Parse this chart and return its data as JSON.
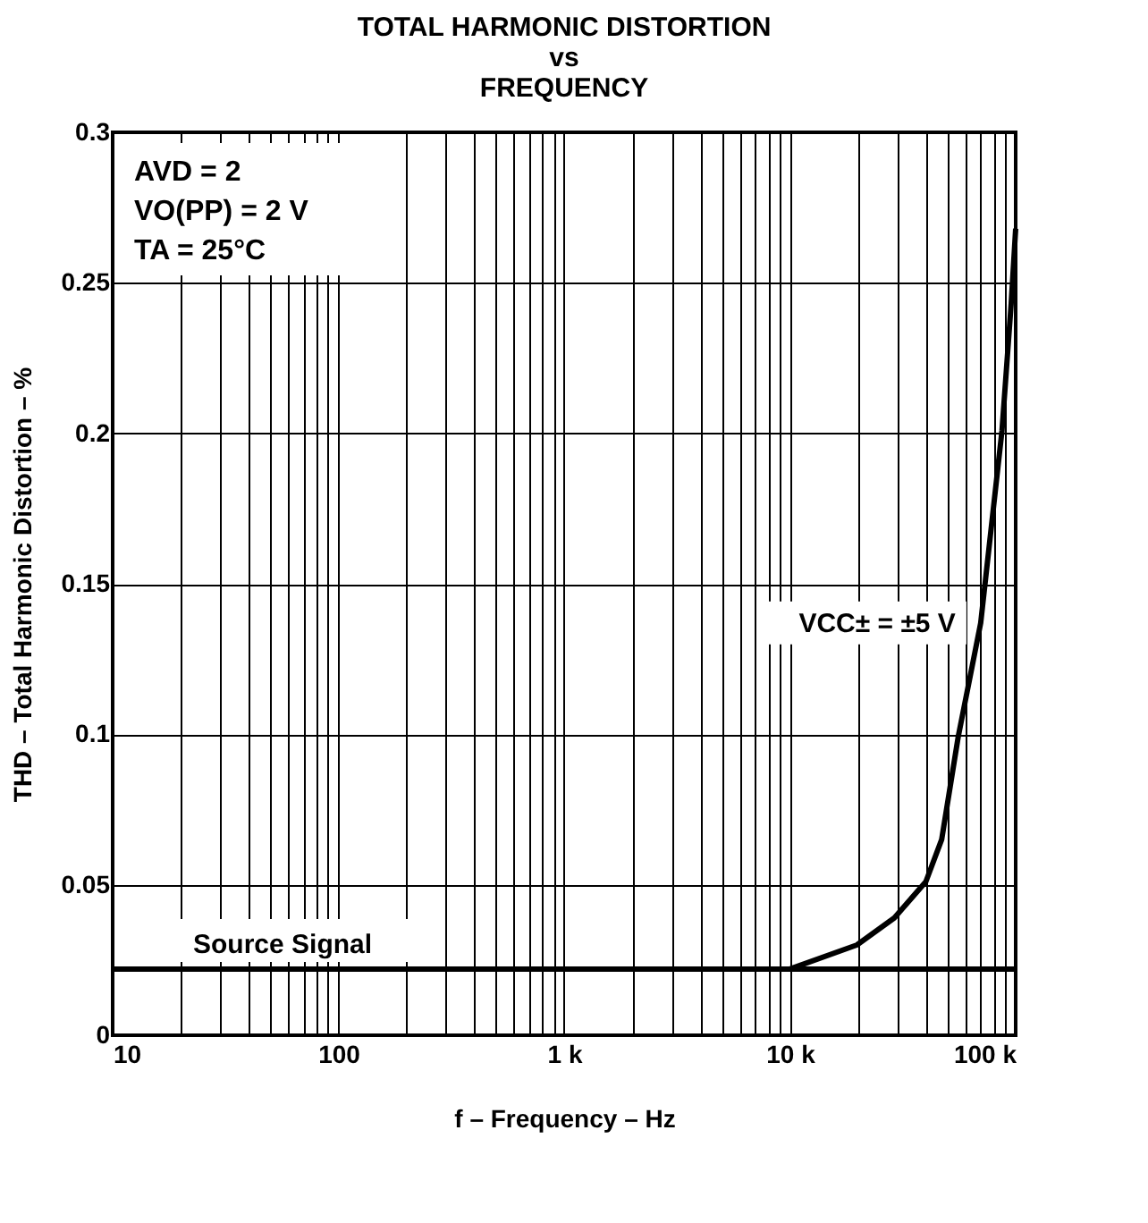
{
  "chart_data": {
    "type": "line",
    "title": "TOTAL HARMONIC DISTORTION\nvs\nFREQUENCY",
    "xlabel": "f – Frequency – Hz",
    "ylabel": "THD – Total Harmonic Distortion – %",
    "log": "x",
    "grid": true,
    "marker": "none",
    "line_style": "solid",
    "xlim": [
      10,
      100000
    ],
    "ylim": [
      0,
      0.3
    ],
    "xticks": [
      10,
      {
        "value": 20,
        "label": null
      },
      {
        "value": 30,
        "label": null
      },
      {
        "value": 40,
        "label": null
      },
      {
        "value": 50,
        "label": null
      },
      {
        "value": 60,
        "label": null
      },
      {
        "value": 70,
        "label": null
      },
      {
        "value": 80,
        "label": null
      },
      {
        "value": 90,
        "label": null
      },
      100,
      {
        "value": 200,
        "label": null
      },
      {
        "value": 300,
        "label": null
      },
      {
        "value": 400,
        "label": null
      },
      {
        "value": 500,
        "label": null
      },
      {
        "value": 600,
        "label": null
      },
      {
        "value": 700,
        "label": null
      },
      {
        "value": 800,
        "label": null
      },
      {
        "value": 900,
        "label": null
      },
      {
        "value": 1000,
        "label": "1 k"
      },
      {
        "value": 2000,
        "label": null
      },
      {
        "value": 3000,
        "label": null
      },
      {
        "value": 4000,
        "label": null
      },
      {
        "value": 5000,
        "label": null
      },
      {
        "value": 6000,
        "label": null
      },
      {
        "value": 7000,
        "label": null
      },
      {
        "value": 8000,
        "label": null
      },
      {
        "value": 9000,
        "label": null
      },
      {
        "value": 10000,
        "label": "10 k"
      },
      {
        "value": 20000,
        "label": null
      },
      {
        "value": 30000,
        "label": null
      },
      {
        "value": 40000,
        "label": null
      },
      {
        "value": 50000,
        "label": null
      },
      {
        "value": 60000,
        "label": null
      },
      {
        "value": 70000,
        "label": null
      },
      {
        "value": 80000,
        "label": null
      },
      {
        "value": 90000,
        "label": null
      },
      {
        "value": 100000,
        "label": "100 k"
      }
    ],
    "yticks": [
      0,
      0.05,
      0.1,
      0.15,
      0.2,
      0.25,
      0.3
    ],
    "x": [
      10000,
      19800,
      29000,
      40000,
      47000,
      55600,
      70000,
      87000,
      95500,
      100000
    ],
    "series": [
      {
        "name": "VCC± = ±5 V",
        "color": "#000000",
        "values": [
          0.022,
          0.03,
          0.039,
          0.051,
          0.065,
          0.099,
          0.137,
          0.201,
          0.243,
          0.268
        ]
      }
    ],
    "ref_lines": [
      {
        "axis": "y",
        "value": 0.022,
        "label": "Source Signal",
        "color": "#000000",
        "line_style": "solid"
      }
    ],
    "annotations": [
      "AVD = 2",
      "VO(PP) = 2 V",
      "TA = 25°C"
    ]
  }
}
